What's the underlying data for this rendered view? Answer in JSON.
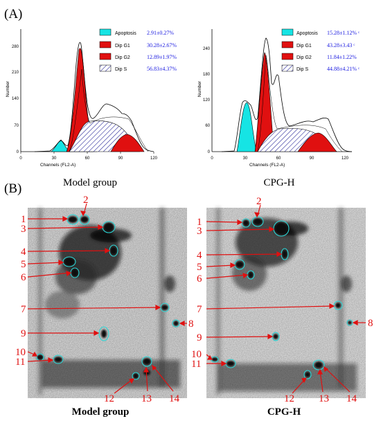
{
  "panel_a_label": "(A)",
  "panel_b_label": "(B)",
  "histograms": [
    {
      "caption": "Model group",
      "ylabel": "Number",
      "xlabel": "Channels (FL2-A)",
      "yticks": [
        "0",
        "70",
        "140",
        "210",
        "280"
      ],
      "xticks": [
        "0",
        "30",
        "60",
        "90",
        "120"
      ],
      "legend": [
        {
          "name": "Apoptosis",
          "value": "2.91±0.27%",
          "color": "#16e4e4"
        },
        {
          "name": "Dip G1",
          "value": "30.28±2.67%",
          "color": "#e01010"
        },
        {
          "name": "Dip G2",
          "value": "12.89±1.97%",
          "color": "#e01010"
        },
        {
          "name": "Dip S",
          "value": "56.83±4.37%",
          "color": "hatch"
        }
      ]
    },
    {
      "caption": "CPG-H",
      "ylabel": "Number",
      "xlabel": "Channels (FL2-A)",
      "yticks": [
        "0",
        "60",
        "120",
        "180",
        "240"
      ],
      "xticks": [
        "0",
        "30",
        "60",
        "90",
        "120"
      ],
      "legend": [
        {
          "name": "Apoptosis",
          "value": "15.28±1.12% ᶜ",
          "color": "#16e4e4"
        },
        {
          "name": "Dip G1",
          "value": "43.28±3.43 ᶜ",
          "color": "#e01010"
        },
        {
          "name": "Dip G2",
          "value": "11.84±1.22%",
          "color": "#e01010"
        },
        {
          "name": "Dip S",
          "value": "44.88±4.21% ᶜ",
          "color": "hatch"
        }
      ]
    }
  ],
  "gels": [
    {
      "caption": "Model group"
    },
    {
      "caption": "CPG-H"
    }
  ],
  "spot_labels": [
    "1",
    "2",
    "3",
    "4",
    "5",
    "6",
    "7",
    "8",
    "9",
    "10",
    "11",
    "12",
    "13",
    "14"
  ],
  "chart_data": [
    {
      "type": "area",
      "title": "Model group",
      "xlabel": "Channels (FL2-A)",
      "ylabel": "Number",
      "xlim": [
        0,
        135
      ],
      "ylim": [
        0,
        300
      ],
      "series": [
        {
          "name": "Apoptosis",
          "value_percent": "2.91±0.27%",
          "peak": {
            "x": 33,
            "y": 30
          }
        },
        {
          "name": "Dip G1",
          "value_percent": "30.28±2.67%",
          "peak": {
            "x": 51,
            "y": 280
          }
        },
        {
          "name": "Dip G2",
          "value_percent": "12.89±1.97%",
          "peak": {
            "x": 95,
            "y": 45
          }
        },
        {
          "name": "Dip S",
          "value_percent": "56.83±4.37%",
          "peak": {
            "x": 70,
            "y": 85
          }
        }
      ]
    },
    {
      "type": "area",
      "title": "CPG-H",
      "xlabel": "Channels (FL2-A)",
      "ylabel": "Number",
      "xlim": [
        0,
        135
      ],
      "ylim": [
        0,
        270
      ],
      "series": [
        {
          "name": "Apoptosis",
          "value_percent": "15.28±1.12%",
          "peak": {
            "x": 30,
            "y": 125
          }
        },
        {
          "name": "Dip G1",
          "value_percent": "43.28±3.43",
          "peak": {
            "x": 45,
            "y": 225
          }
        },
        {
          "name": "Dip G2",
          "value_percent": "11.84±1.22%",
          "peak": {
            "x": 95,
            "y": 45
          }
        },
        {
          "name": "Dip S",
          "value_percent": "44.88±4.21%",
          "peak": {
            "x": 70,
            "y": 60
          }
        }
      ]
    }
  ]
}
